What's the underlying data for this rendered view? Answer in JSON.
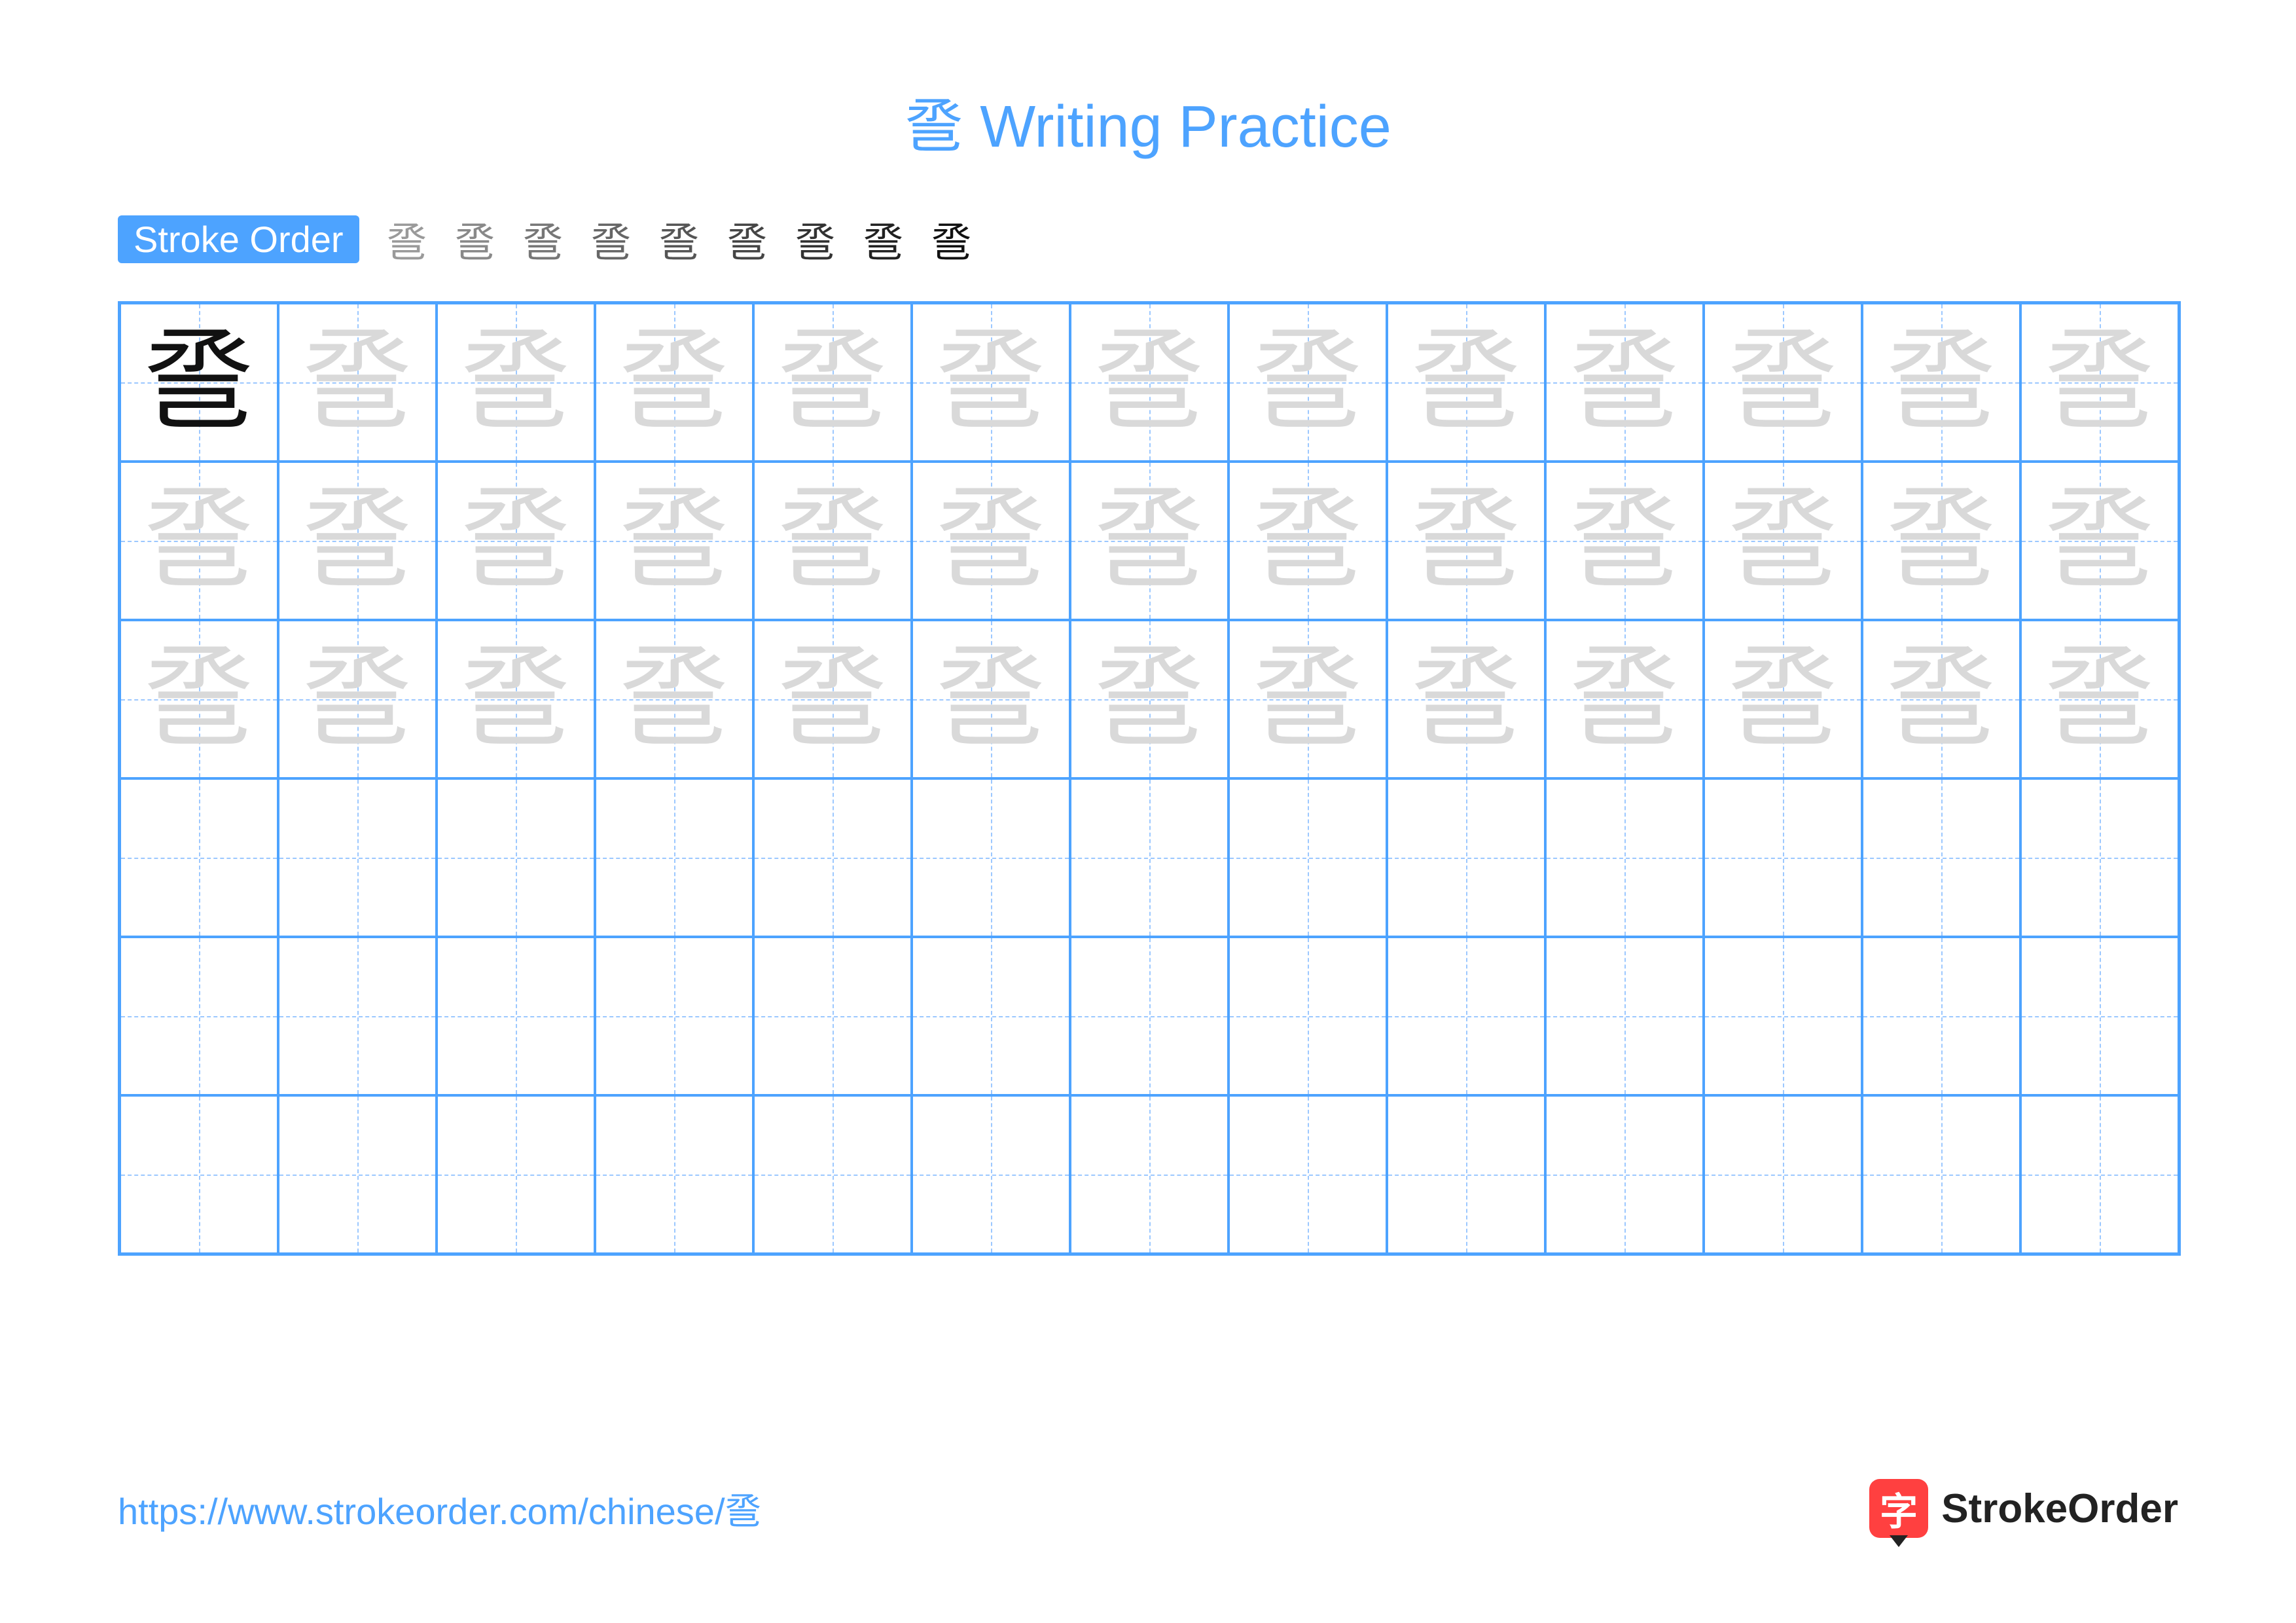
{
  "title": "巹 Writing Practice",
  "title_color": "#4da3ff",
  "stroke_order_label": "Stroke Order",
  "stroke_label_bg": "#4da3ff",
  "character": "巹",
  "stroke_count": 9,
  "grid": {
    "cols": 13,
    "rows": 6,
    "cell_size": 242,
    "border_color": "#4da3ff",
    "guide_color": "#9cc8ff",
    "example_rows": 3,
    "first_cell_dark": true,
    "dark_color": "#111111",
    "trace_color": "#d9d9d9",
    "char_fontsize": 170
  },
  "footer": {
    "url": "https://www.strokeorder.com/chinese/巹",
    "url_color": "#4da3ff",
    "logo_badge_bg": "#ff4040",
    "logo_badge_char": "字",
    "logo_text": "StrokeOrder"
  }
}
